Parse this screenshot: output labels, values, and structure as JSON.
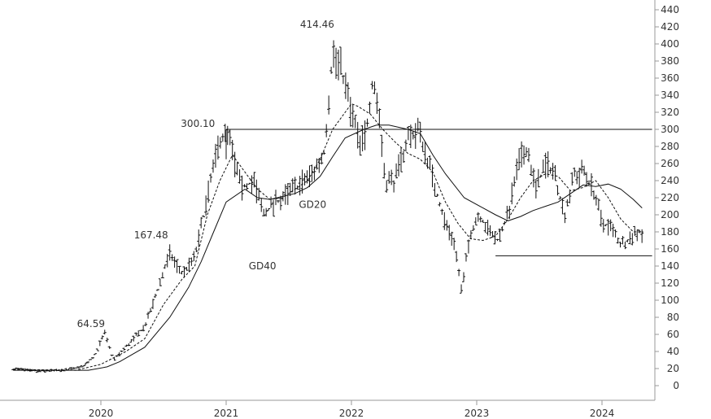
{
  "chart_data": {
    "type": "line",
    "subtype": "weekly OHLC price bars with moving averages",
    "title": "",
    "xlabel": "",
    "ylabel": "",
    "ylim": [
      -10,
      440
    ],
    "yticks": [
      0,
      20,
      40,
      60,
      80,
      100,
      120,
      140,
      160,
      180,
      200,
      220,
      240,
      260,
      280,
      300,
      320,
      340,
      360,
      380,
      400,
      420,
      440
    ],
    "xlim": [
      2019.3,
      2024.4
    ],
    "xticks": [
      {
        "label": "2020",
        "value": 2020
      },
      {
        "label": "2021",
        "value": 2021
      },
      {
        "label": "2022",
        "value": 2022
      },
      {
        "label": "2023",
        "value": 2023
      },
      {
        "label": "2024",
        "value": 2024
      }
    ],
    "grid": false,
    "axis_position": "right",
    "price_path": [
      [
        2019.3,
        20
      ],
      [
        2019.5,
        17
      ],
      [
        2019.7,
        18
      ],
      [
        2019.85,
        22
      ],
      [
        2019.95,
        35
      ],
      [
        2020.03,
        62
      ],
      [
        2020.1,
        30
      ],
      [
        2020.2,
        45
      ],
      [
        2020.35,
        70
      ],
      [
        2020.45,
        110
      ],
      [
        2020.55,
        155
      ],
      [
        2020.65,
        130
      ],
      [
        2020.75,
        150
      ],
      [
        2020.82,
        200
      ],
      [
        2020.88,
        240
      ],
      [
        2020.95,
        290
      ],
      [
        2021.02,
        290
      ],
      [
        2021.12,
        230
      ],
      [
        2021.22,
        240
      ],
      [
        2021.3,
        200
      ],
      [
        2021.4,
        215
      ],
      [
        2021.5,
        225
      ],
      [
        2021.62,
        240
      ],
      [
        2021.7,
        250
      ],
      [
        2021.78,
        270
      ],
      [
        2021.85,
        390
      ],
      [
        2021.92,
        370
      ],
      [
        2022.0,
        320
      ],
      [
        2022.07,
        280
      ],
      [
        2022.12,
        300
      ],
      [
        2022.17,
        360
      ],
      [
        2022.22,
        320
      ],
      [
        2022.27,
        240
      ],
      [
        2022.35,
        240
      ],
      [
        2022.45,
        290
      ],
      [
        2022.53,
        300
      ],
      [
        2022.6,
        270
      ],
      [
        2022.67,
        230
      ],
      [
        2022.75,
        190
      ],
      [
        2022.82,
        170
      ],
      [
        2022.88,
        110
      ],
      [
        2022.95,
        180
      ],
      [
        2023.02,
        200
      ],
      [
        2023.1,
        180
      ],
      [
        2023.17,
        170
      ],
      [
        2023.25,
        200
      ],
      [
        2023.33,
        260
      ],
      [
        2023.4,
        280
      ],
      [
        2023.47,
        230
      ],
      [
        2023.55,
        260
      ],
      [
        2023.62,
        250
      ],
      [
        2023.7,
        200
      ],
      [
        2023.78,
        245
      ],
      [
        2023.85,
        250
      ],
      [
        2023.93,
        230
      ],
      [
        2024.0,
        190
      ],
      [
        2024.07,
        185
      ],
      [
        2024.15,
        165
      ],
      [
        2024.2,
        170
      ],
      [
        2024.27,
        180
      ],
      [
        2024.33,
        178
      ]
    ],
    "series": [
      {
        "name": "GD20",
        "style": "dashed",
        "points": [
          [
            2019.3,
            19
          ],
          [
            2019.8,
            18
          ],
          [
            2020.0,
            25
          ],
          [
            2020.2,
            40
          ],
          [
            2020.35,
            55
          ],
          [
            2020.5,
            95
          ],
          [
            2020.65,
            125
          ],
          [
            2020.75,
            140
          ],
          [
            2020.85,
            200
          ],
          [
            2020.95,
            240
          ],
          [
            2021.05,
            270
          ],
          [
            2021.15,
            250
          ],
          [
            2021.25,
            230
          ],
          [
            2021.35,
            218
          ],
          [
            2021.45,
            220
          ],
          [
            2021.55,
            230
          ],
          [
            2021.65,
            240
          ],
          [
            2021.75,
            265
          ],
          [
            2021.85,
            300
          ],
          [
            2021.95,
            320
          ],
          [
            2022.0,
            330
          ],
          [
            2022.05,
            327
          ],
          [
            2022.15,
            318
          ],
          [
            2022.25,
            300
          ],
          [
            2022.35,
            285
          ],
          [
            2022.45,
            272
          ],
          [
            2022.55,
            265
          ],
          [
            2022.65,
            250
          ],
          [
            2022.75,
            215
          ],
          [
            2022.85,
            190
          ],
          [
            2022.95,
            172
          ],
          [
            2023.05,
            170
          ],
          [
            2023.15,
            175
          ],
          [
            2023.25,
            195
          ],
          [
            2023.35,
            220
          ],
          [
            2023.45,
            240
          ],
          [
            2023.55,
            248
          ],
          [
            2023.65,
            245
          ],
          [
            2023.75,
            228
          ],
          [
            2023.85,
            232
          ],
          [
            2023.95,
            240
          ],
          [
            2024.05,
            220
          ],
          [
            2024.15,
            195
          ],
          [
            2024.25,
            180
          ],
          [
            2024.33,
            180
          ]
        ]
      },
      {
        "name": "GD40",
        "style": "solid",
        "points": [
          [
            2019.3,
            18
          ],
          [
            2019.9,
            18
          ],
          [
            2020.05,
            22
          ],
          [
            2020.15,
            28
          ],
          [
            2020.35,
            45
          ],
          [
            2020.55,
            80
          ],
          [
            2020.7,
            115
          ],
          [
            2020.8,
            145
          ],
          [
            2020.9,
            180
          ],
          [
            2021.0,
            215
          ],
          [
            2021.15,
            230
          ],
          [
            2021.25,
            220
          ],
          [
            2021.35,
            218
          ],
          [
            2021.55,
            225
          ],
          [
            2021.65,
            232
          ],
          [
            2021.75,
            245
          ],
          [
            2021.85,
            268
          ],
          [
            2021.95,
            290
          ],
          [
            2022.1,
            300
          ],
          [
            2022.2,
            305
          ],
          [
            2022.3,
            305
          ],
          [
            2022.45,
            300
          ],
          [
            2022.55,
            295
          ],
          [
            2022.65,
            270
          ],
          [
            2022.75,
            248
          ],
          [
            2022.9,
            220
          ],
          [
            2023.05,
            208
          ],
          [
            2023.15,
            200
          ],
          [
            2023.25,
            193
          ],
          [
            2023.35,
            198
          ],
          [
            2023.45,
            205
          ],
          [
            2023.55,
            210
          ],
          [
            2023.65,
            215
          ],
          [
            2023.75,
            225
          ],
          [
            2023.85,
            235
          ],
          [
            2023.95,
            233
          ],
          [
            2024.05,
            236
          ],
          [
            2024.15,
            230
          ],
          [
            2024.25,
            218
          ],
          [
            2024.32,
            208
          ]
        ]
      }
    ],
    "reference_lines": [
      {
        "y": 300,
        "x_from": 2021.0,
        "x_to": 2024.4
      },
      {
        "y": 152,
        "x_from": 2023.15,
        "x_to": 2024.4
      }
    ],
    "annotations": [
      {
        "text": "64.59",
        "x": 2020.03,
        "y": 64.59
      },
      {
        "text": "167.48",
        "x": 2020.55,
        "y": 167.48
      },
      {
        "text": "300.10",
        "x": 2020.95,
        "y": 300.1
      },
      {
        "text": "414.46",
        "x": 2021.85,
        "y": 414.46
      },
      {
        "text": "GD20",
        "x": 2021.58,
        "y": 212
      },
      {
        "text": "GD40",
        "x": 2021.18,
        "y": 140
      }
    ]
  }
}
